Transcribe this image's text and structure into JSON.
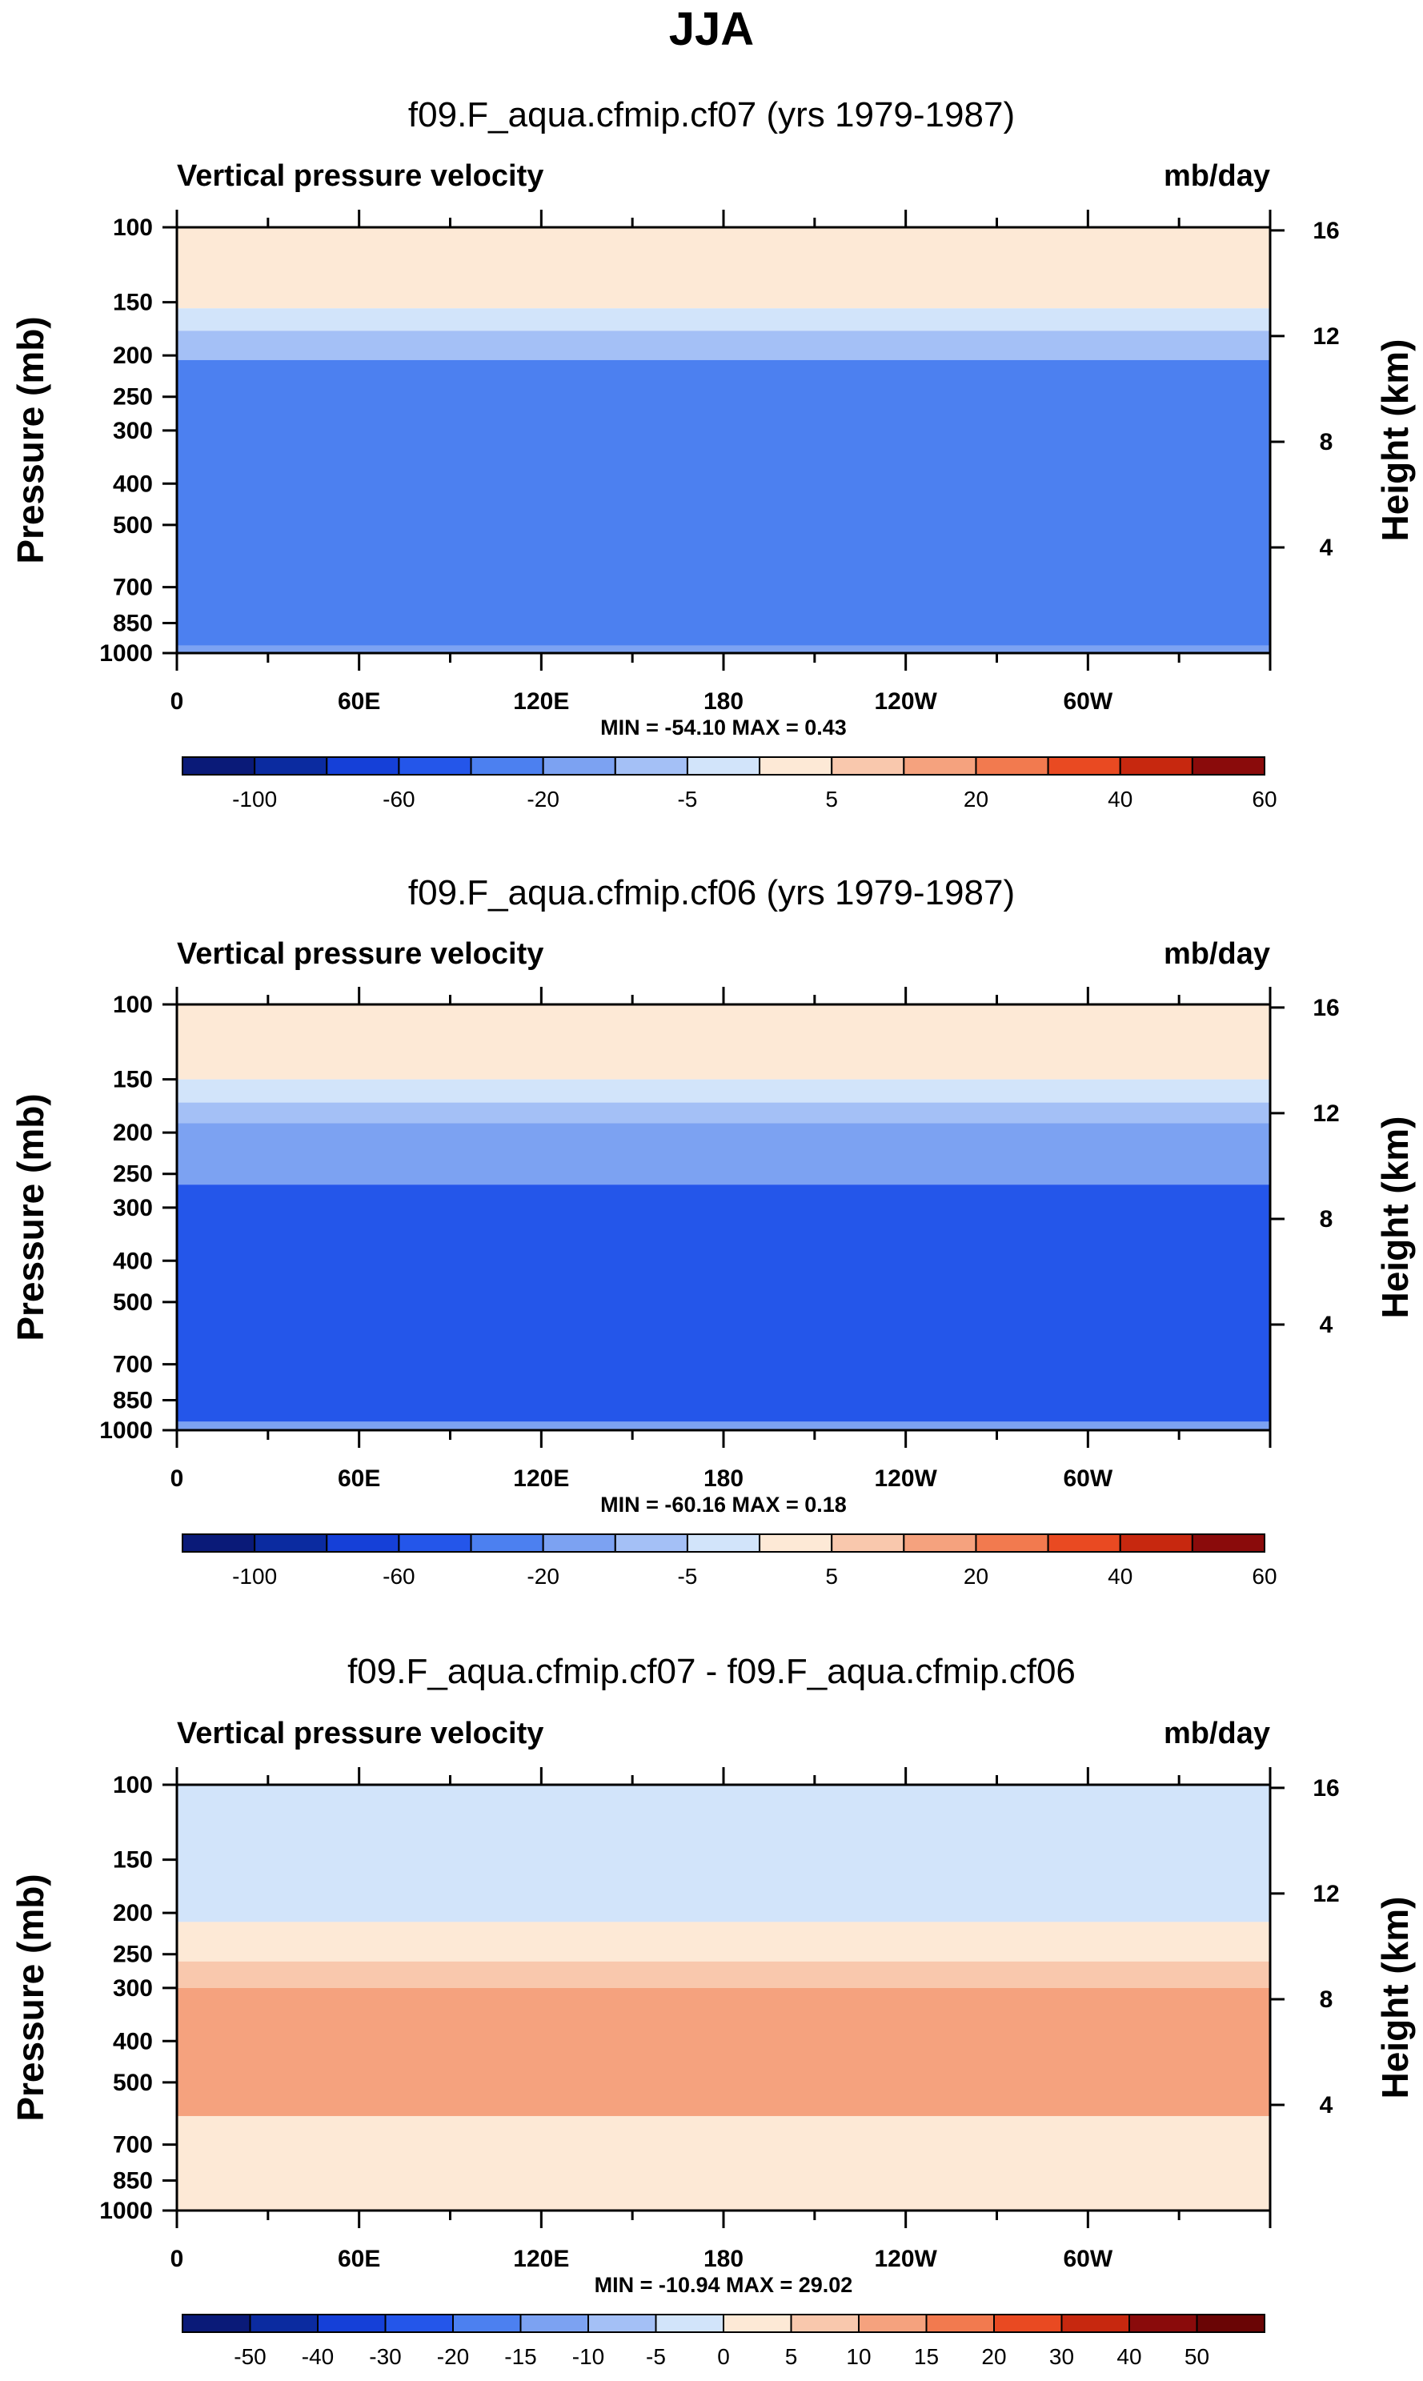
{
  "figure": {
    "title": "JJA"
  },
  "chart_data": [
    {
      "type": "heatmap",
      "title": "f09.F_aqua.cfmip.cf07 (yrs 1979-1987)",
      "left_label": "Vertical pressure velocity",
      "right_label": "mb/day",
      "ylabel": "Pressure (mb)",
      "ylabel_right": "Height (km)",
      "x_ticks": [
        "0",
        "60E",
        "120E",
        "180",
        "120W",
        "60W"
      ],
      "y_ticks": [
        "100",
        "150",
        "200",
        "250",
        "300",
        "400",
        "500",
        "700",
        "850",
        "1000"
      ],
      "y_ticks_right": [
        "16",
        "12",
        "8",
        "4"
      ],
      "ylim": [
        1000,
        100
      ],
      "stats": "MIN = -54.10  MAX =   0.43",
      "min": -54.1,
      "max": 0.43,
      "fill_levels": [
        {
          "p_top": 100,
          "p_bot": 155,
          "value_range": "-5 to 0"
        },
        {
          "p_top": 155,
          "p_bot": 175,
          "value_range": "-10 to -5"
        },
        {
          "p_top": 175,
          "p_bot": 205,
          "value_range": "-15 to -10"
        },
        {
          "p_top": 205,
          "p_bot": 960,
          "value_range": "-30 to -20"
        },
        {
          "p_top": 960,
          "p_bot": 1000,
          "value_range": "-20 to -15"
        }
      ],
      "colorbar": {
        "colors": [
          "#0a1a78",
          "#0b2ba0",
          "#1540d8",
          "#2456ea",
          "#4c80f0",
          "#7ca2f2",
          "#a4c0f6",
          "#d2e4fa",
          "#fde9d6",
          "#f9c8ad",
          "#f5a27e",
          "#f27a4f",
          "#e94a22",
          "#c7280f",
          "#8a0b0b"
        ],
        "labels": [
          "-100",
          "-60",
          "-20",
          "-5",
          "5",
          "20",
          "40",
          "60"
        ],
        "label_slots": [
          1,
          3,
          5,
          7,
          9,
          11,
          13,
          15
        ]
      }
    },
    {
      "type": "heatmap",
      "title": "f09.F_aqua.cfmip.cf06 (yrs 1979-1987)",
      "left_label": "Vertical pressure velocity",
      "right_label": "mb/day",
      "ylabel": "Pressure (mb)",
      "ylabel_right": "Height (km)",
      "x_ticks": [
        "0",
        "60E",
        "120E",
        "180",
        "120W",
        "60W"
      ],
      "y_ticks": [
        "100",
        "150",
        "200",
        "250",
        "300",
        "400",
        "500",
        "700",
        "850",
        "1000"
      ],
      "y_ticks_right": [
        "16",
        "12",
        "8",
        "4"
      ],
      "ylim": [
        1000,
        100
      ],
      "stats": "MIN = -60.16  MAX =   0.18",
      "min": -60.16,
      "max": 0.18,
      "fill_levels": [
        {
          "p_top": 100,
          "p_bot": 150,
          "value_range": "-5 to 0"
        },
        {
          "p_top": 150,
          "p_bot": 170,
          "value_range": "-10 to -5"
        },
        {
          "p_top": 170,
          "p_bot": 190,
          "value_range": "-15 to -10"
        },
        {
          "p_top": 190,
          "p_bot": 265,
          "value_range": "-20 to -15"
        },
        {
          "p_top": 265,
          "p_bot": 955,
          "value_range": "-40 to -30"
        },
        {
          "p_top": 955,
          "p_bot": 1000,
          "value_range": "-20 to -15"
        }
      ],
      "colorbar": {
        "colors": [
          "#0a1a78",
          "#0b2ba0",
          "#1540d8",
          "#2456ea",
          "#4c80f0",
          "#7ca2f2",
          "#a4c0f6",
          "#d2e4fa",
          "#fde9d6",
          "#f9c8ad",
          "#f5a27e",
          "#f27a4f",
          "#e94a22",
          "#c7280f",
          "#8a0b0b"
        ],
        "labels": [
          "-100",
          "-60",
          "-20",
          "-5",
          "5",
          "20",
          "40",
          "60"
        ],
        "label_slots": [
          1,
          3,
          5,
          7,
          9,
          11,
          13,
          15
        ]
      }
    },
    {
      "type": "heatmap",
      "title": "f09.F_aqua.cfmip.cf07 - f09.F_aqua.cfmip.cf06",
      "left_label": "Vertical pressure velocity",
      "right_label": "mb/day",
      "ylabel": "Pressure (mb)",
      "ylabel_right": "Height (km)",
      "x_ticks": [
        "0",
        "60E",
        "120E",
        "180",
        "120W",
        "60W"
      ],
      "y_ticks": [
        "100",
        "150",
        "200",
        "250",
        "300",
        "400",
        "500",
        "700",
        "850",
        "1000"
      ],
      "y_ticks_right": [
        "16",
        "12",
        "8",
        "4"
      ],
      "ylim": [
        1000,
        100
      ],
      "stats": "MIN = -10.94  MAX = 29.02",
      "min": -10.94,
      "max": 29.02,
      "fill_levels": [
        {
          "p_top": 100,
          "p_bot": 210,
          "value_range": "-5 to 0"
        },
        {
          "p_top": 210,
          "p_bot": 260,
          "value_range": "0 to 5"
        },
        {
          "p_top": 260,
          "p_bot": 300,
          "value_range": "5 to 10"
        },
        {
          "p_top": 300,
          "p_bot": 600,
          "value_range": "10 to 15"
        },
        {
          "p_top": 600,
          "p_bot": 1000,
          "value_range": "0 to 5"
        }
      ],
      "colorbar": {
        "colors": [
          "#0a1a78",
          "#0b2ba0",
          "#1540d8",
          "#2456ea",
          "#4c80f0",
          "#7ca2f2",
          "#a4c0f6",
          "#d2e4fa",
          "#fde9d6",
          "#f9c8ad",
          "#f5a27e",
          "#f27a4f",
          "#e94a22",
          "#c7280f",
          "#8a0b0b",
          "#6a0505"
        ],
        "labels": [
          "-50",
          "-40",
          "-30",
          "-20",
          "-15",
          "-10",
          "-5",
          "0",
          "5",
          "10",
          "15",
          "20",
          "30",
          "40",
          "50"
        ],
        "label_slots": [
          1,
          2,
          3,
          4,
          5,
          6,
          7,
          8,
          9,
          10,
          11,
          12,
          13,
          14,
          15
        ]
      }
    }
  ]
}
